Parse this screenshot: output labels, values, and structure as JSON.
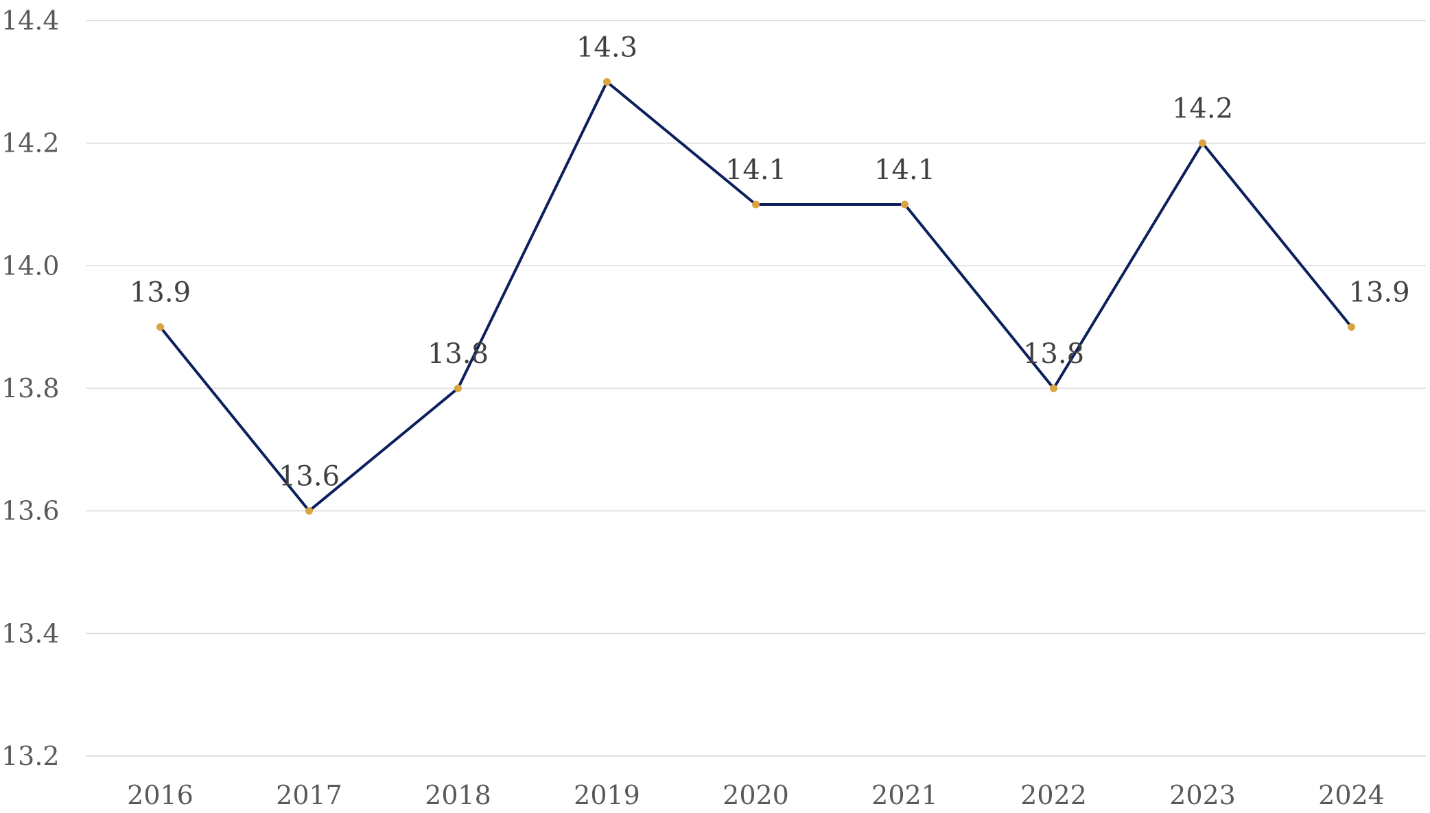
{
  "chart_data": {
    "type": "line",
    "title": "",
    "xlabel": "",
    "ylabel": "",
    "categories": [
      "2016",
      "2017",
      "2018",
      "2019",
      "2020",
      "2021",
      "2022",
      "2023",
      "2024"
    ],
    "series": [
      {
        "values": [
          13.9,
          13.6,
          13.8,
          14.3,
          14.1,
          14.1,
          13.8,
          14.2,
          13.9
        ],
        "data_labels": [
          "13.9",
          "13.6",
          "13.8",
          "14.3",
          "14.1",
          "14.1",
          "13.8",
          "14.2",
          "13.9"
        ]
      }
    ],
    "ylim": [
      13.2,
      14.4
    ],
    "y_ticks": [
      "13.2",
      "13.4",
      "13.6",
      "13.8",
      "14.0",
      "14.2",
      "14.4"
    ],
    "grid": true,
    "legend": "none",
    "colors": {
      "line": "#0b1f5c",
      "marker": "#d9a441",
      "grid": "#d9d9d9",
      "tick_text": "#595959",
      "label_text": "#404040"
    }
  }
}
